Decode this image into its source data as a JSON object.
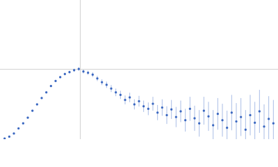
{
  "chart_data": {
    "type": "scatter",
    "xlim": [
      0,
      6
    ],
    "ylim": [
      0,
      2.2
    ],
    "vlines": [
      1.732
    ],
    "hlines": [
      1.104
    ],
    "series": [
      {
        "color": "#3a67c0",
        "error_color": "#a9bde6",
        "x": [
          0.1,
          0.2,
          0.3,
          0.4,
          0.5,
          0.6,
          0.7,
          0.8,
          0.9,
          1.0,
          1.1,
          1.2,
          1.3,
          1.4,
          1.5,
          1.6,
          1.7,
          1.8,
          1.9,
          2.0,
          2.1,
          2.2,
          2.3,
          2.4,
          2.5,
          2.6,
          2.7,
          2.8,
          2.9,
          3.0,
          3.1,
          3.2,
          3.3,
          3.4,
          3.5,
          3.6,
          3.7,
          3.8,
          3.9,
          4.0,
          4.1,
          4.2,
          4.3,
          4.4,
          4.5,
          4.6,
          4.7,
          4.8,
          4.9,
          5.0,
          5.1,
          5.2,
          5.3,
          5.4,
          5.5,
          5.6,
          5.7,
          5.8,
          5.9
        ],
        "values": [
          0.01,
          0.04,
          0.09,
          0.17,
          0.25,
          0.34,
          0.45,
          0.55,
          0.65,
          0.74,
          0.84,
          0.92,
          0.98,
          1.03,
          1.06,
          1.09,
          1.11,
          1.07,
          1.05,
          1.02,
          0.96,
          0.9,
          0.86,
          0.8,
          0.74,
          0.7,
          0.62,
          0.66,
          0.55,
          0.6,
          0.52,
          0.48,
          0.56,
          0.42,
          0.5,
          0.38,
          0.47,
          0.35,
          0.44,
          0.3,
          0.48,
          0.33,
          0.25,
          0.45,
          0.36,
          0.22,
          0.4,
          0.3,
          0.18,
          0.42,
          0.28,
          0.35,
          0.15,
          0.38,
          0.26,
          0.44,
          0.2,
          0.32,
          0.25
        ],
        "errors": [
          0.005,
          0.005,
          0.005,
          0.006,
          0.006,
          0.007,
          0.008,
          0.009,
          0.01,
          0.012,
          0.014,
          0.016,
          0.018,
          0.02,
          0.022,
          0.025,
          0.028,
          0.03,
          0.034,
          0.038,
          0.042,
          0.046,
          0.05,
          0.055,
          0.06,
          0.065,
          0.07,
          0.075,
          0.08,
          0.085,
          0.09,
          0.1,
          0.11,
          0.12,
          0.13,
          0.14,
          0.15,
          0.16,
          0.17,
          0.18,
          0.19,
          0.2,
          0.21,
          0.22,
          0.23,
          0.24,
          0.25,
          0.26,
          0.27,
          0.28,
          0.29,
          0.3,
          0.31,
          0.32,
          0.33,
          0.34,
          0.35,
          0.36,
          0.37
        ]
      }
    ]
  }
}
